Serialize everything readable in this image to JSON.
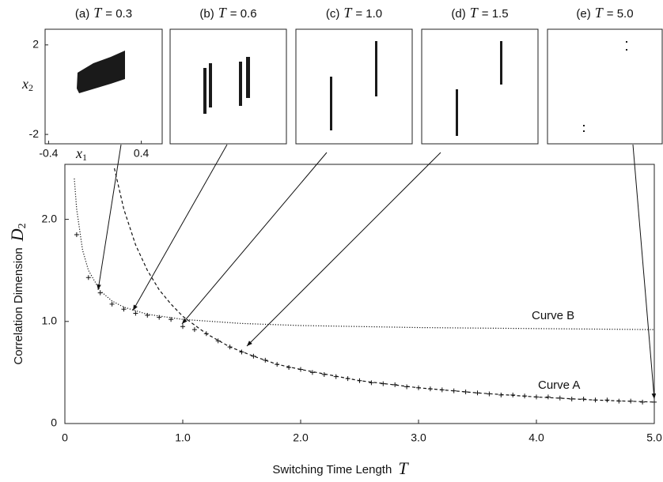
{
  "chart_data": {
    "type": "line",
    "xlabel": "Switching Time Length",
    "xlabel_symbol": "T",
    "ylabel": "Correlation Dimension",
    "ylabel_symbol": "D",
    "ylabel_subscript": "2",
    "xlim": [
      0,
      5
    ],
    "ylim": [
      0,
      2.5
    ],
    "xticks": [
      0,
      {
        "value": 1,
        "label": "1.0"
      },
      {
        "value": 2,
        "label": "2.0"
      },
      {
        "value": 3,
        "label": "3.0"
      },
      {
        "value": 4,
        "label": "4.0"
      },
      {
        "value": 5,
        "label": "5.0"
      }
    ],
    "yticks": [
      0,
      {
        "value": 1,
        "label": "1.0"
      },
      {
        "value": 2,
        "label": "2.0"
      }
    ],
    "series": [
      {
        "name": "Curve A",
        "color": "#111111",
        "style": "dashed",
        "x": [
          0.42,
          0.5,
          0.6,
          0.7,
          0.8,
          0.9,
          1.0,
          1.2,
          1.4,
          1.6,
          1.8,
          2.0,
          2.5,
          3.0,
          3.5,
          4.0,
          4.5,
          5.0
        ],
        "values": [
          2.5,
          2.1,
          1.75,
          1.5,
          1.31,
          1.17,
          1.05,
          0.88,
          0.75,
          0.66,
          0.58,
          0.53,
          0.42,
          0.35,
          0.3,
          0.26,
          0.23,
          0.21
        ]
      },
      {
        "name": "Curve B",
        "color": "#111111",
        "style": "dotted",
        "x": [
          0.08,
          0.1,
          0.15,
          0.2,
          0.3,
          0.4,
          0.5,
          0.7,
          1.0,
          1.5,
          2.0,
          3.0,
          4.0,
          5.0
        ],
        "values": [
          2.4,
          2.1,
          1.7,
          1.5,
          1.3,
          1.2,
          1.14,
          1.07,
          1.02,
          0.98,
          0.96,
          0.94,
          0.93,
          0.92
        ]
      },
      {
        "color": "#111111",
        "marker": "+",
        "x": [
          0.1,
          0.2,
          0.3,
          0.4,
          0.5,
          0.6,
          0.7,
          0.8,
          0.9,
          1.0,
          1.1,
          1.2,
          1.3,
          1.4,
          1.5,
          1.6,
          1.7,
          1.8,
          1.9,
          2.0,
          2.1,
          2.2,
          2.3,
          2.4,
          2.5,
          2.6,
          2.7,
          2.8,
          2.9,
          3.0,
          3.1,
          3.2,
          3.3,
          3.4,
          3.5,
          3.6,
          3.7,
          3.8,
          3.9,
          4.0,
          4.1,
          4.2,
          4.3,
          4.4,
          4.5,
          4.6,
          4.7,
          4.8,
          4.9,
          5.0
        ],
        "values": [
          1.85,
          1.43,
          1.28,
          1.17,
          1.12,
          1.08,
          1.06,
          1.04,
          1.02,
          0.95,
          0.92,
          0.88,
          0.81,
          0.75,
          0.7,
          0.66,
          0.62,
          0.58,
          0.55,
          0.53,
          0.5,
          0.48,
          0.46,
          0.44,
          0.42,
          0.4,
          0.39,
          0.38,
          0.36,
          0.35,
          0.34,
          0.33,
          0.32,
          0.31,
          0.3,
          0.29,
          0.28,
          0.28,
          0.27,
          0.26,
          0.26,
          0.25,
          0.24,
          0.24,
          0.23,
          0.23,
          0.22,
          0.22,
          0.21,
          0.21
        ]
      }
    ]
  },
  "insets": [
    {
      "prefix": "(a)",
      "symbol": "T",
      "suffix": "= 0.3",
      "xlim": [
        -0.43,
        0.58
      ],
      "ylim": [
        -2.42,
        2.7
      ],
      "xticks": [
        -0.4,
        0.4
      ],
      "yticks": [
        2,
        -2
      ],
      "xlabel": "x",
      "xlabel_sub": "1",
      "ylabel": "x",
      "ylabel_sub": "2"
    },
    {
      "prefix": "(b)",
      "symbol": "T",
      "suffix": "= 0.6"
    },
    {
      "prefix": "(c)",
      "symbol": "T",
      "suffix": "= 1.0"
    },
    {
      "prefix": "(d)",
      "symbol": "T",
      "suffix": "= 1.5"
    },
    {
      "prefix": "(e)",
      "symbol": "T",
      "suffix": "= 5.0"
    }
  ]
}
